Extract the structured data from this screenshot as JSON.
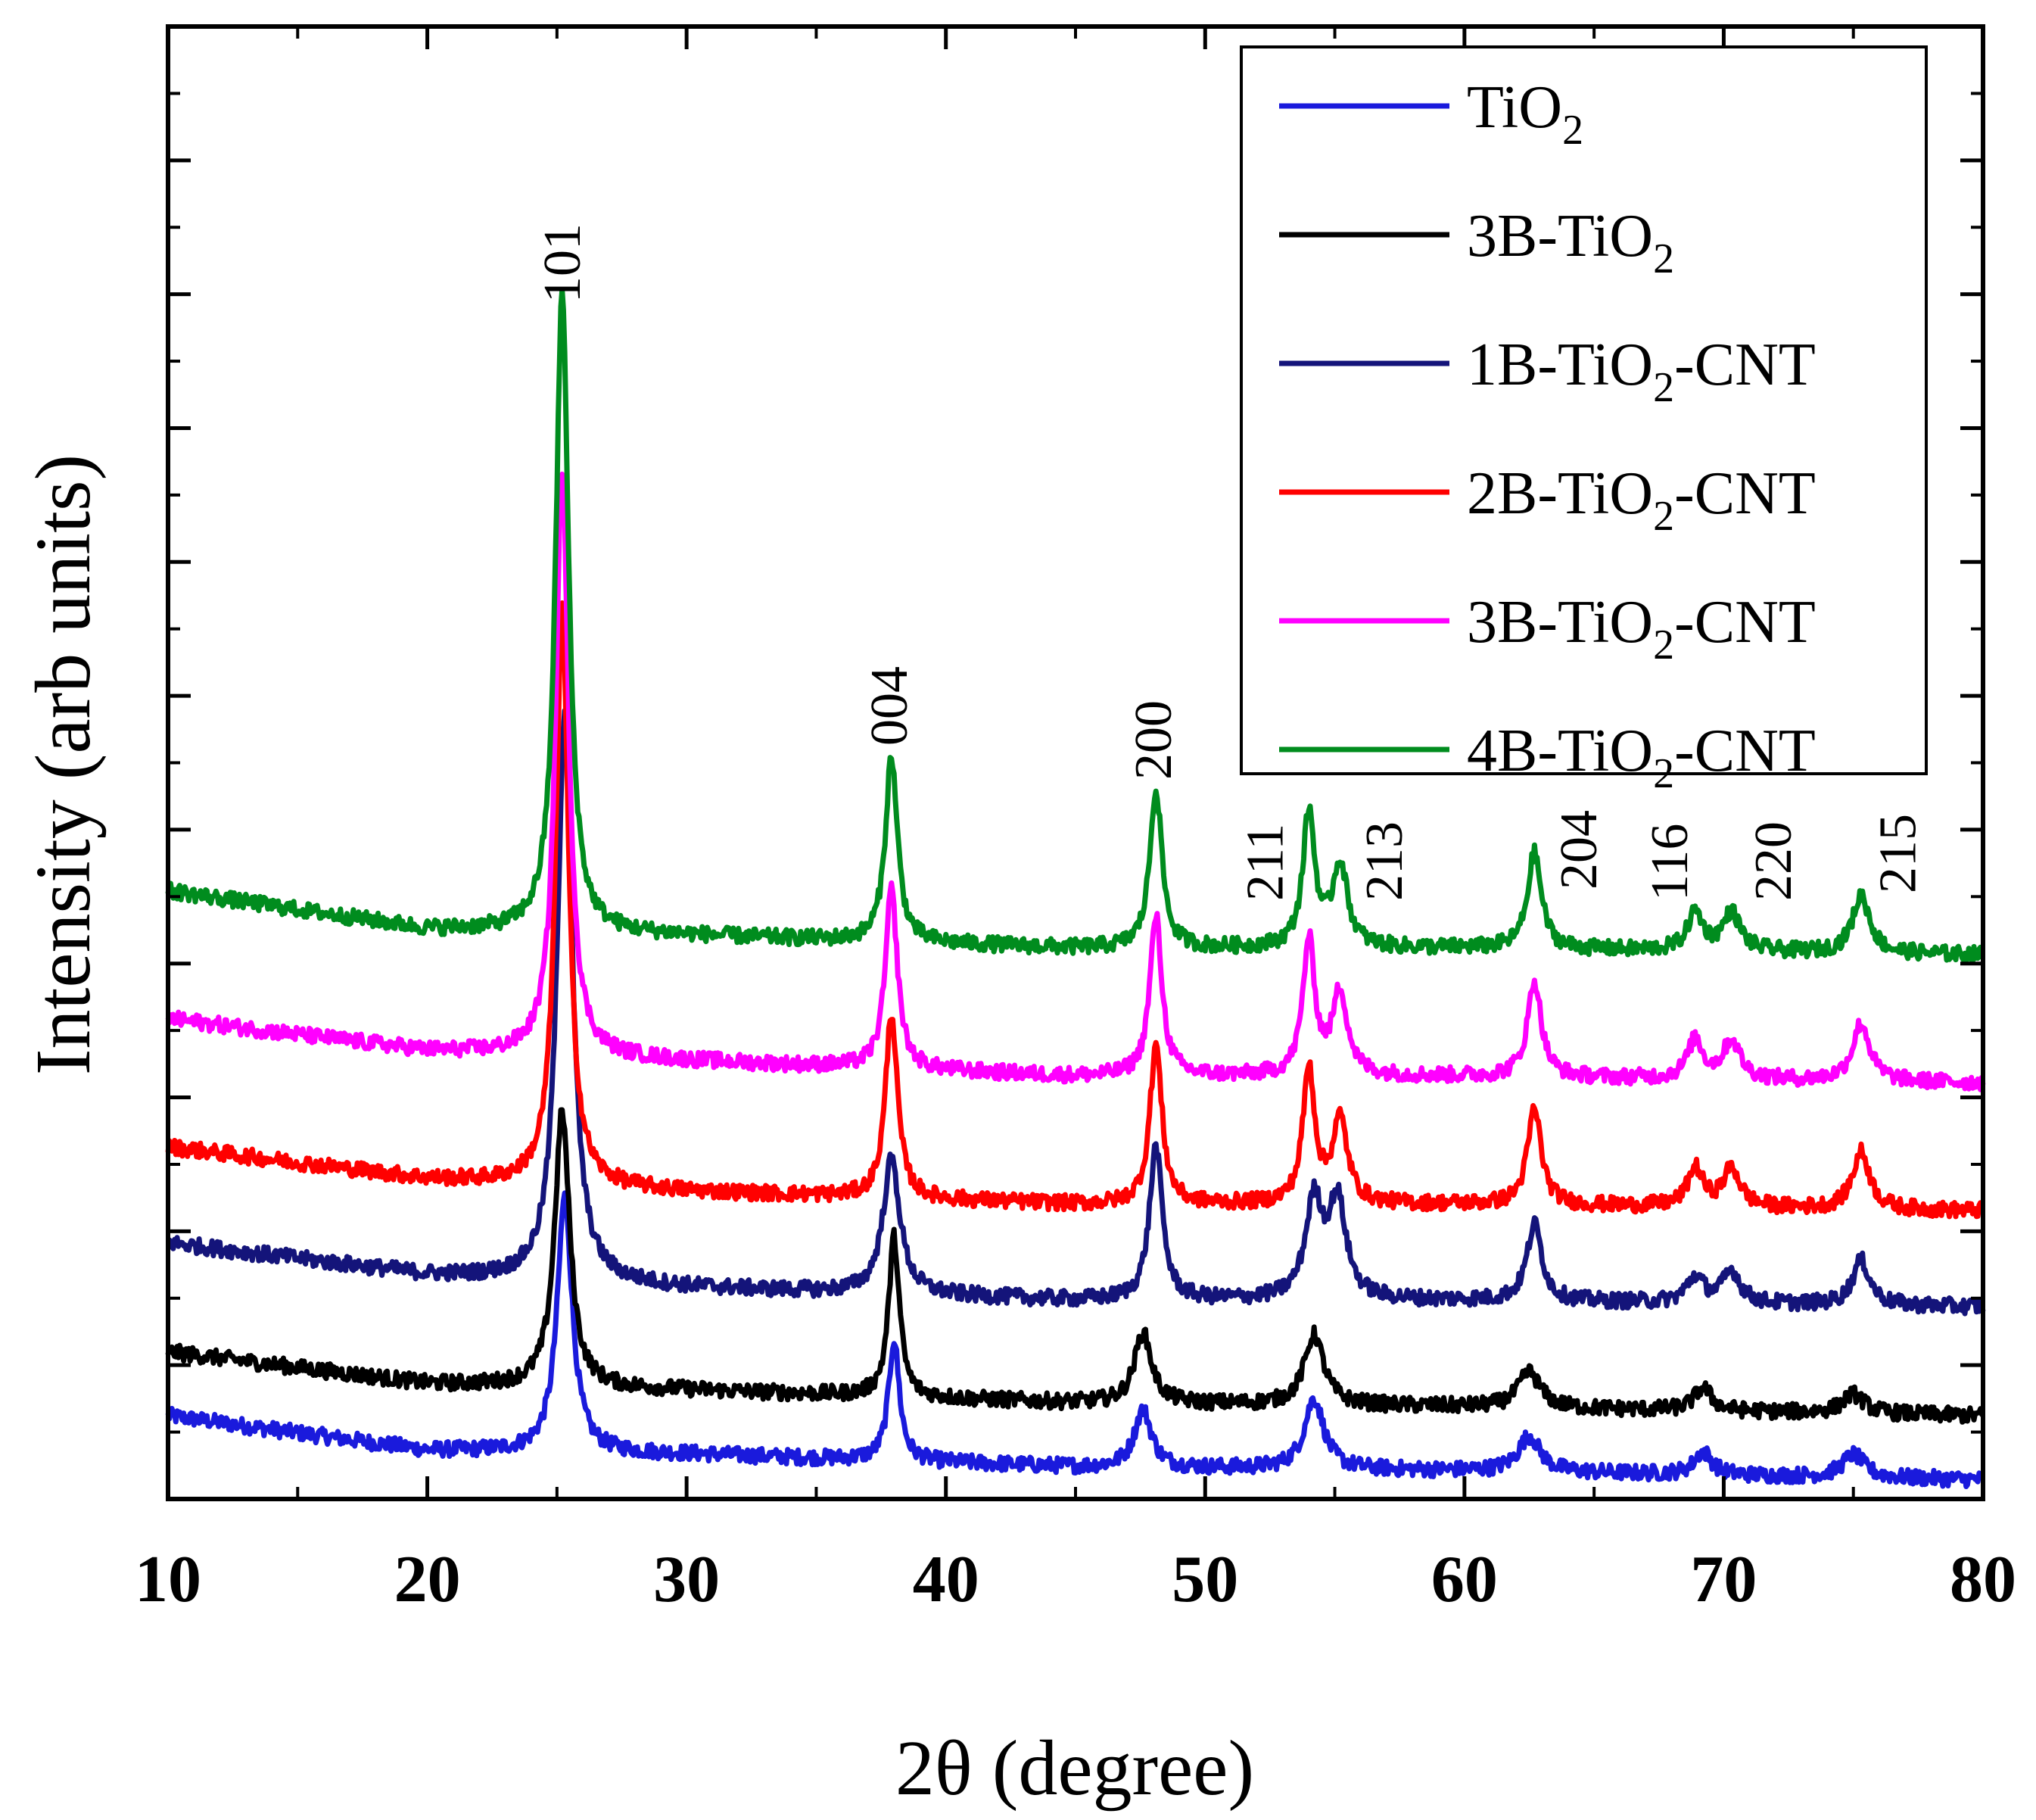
{
  "chart_data": {
    "type": "line",
    "title": "",
    "xlabel": "2θ  (degree)",
    "ylabel": "Intensity (arb units)",
    "xlim": [
      10,
      80
    ],
    "ylim": [
      0,
      11.5
    ],
    "x_ticks": [
      10,
      20,
      30,
      40,
      50,
      60,
      70,
      80
    ],
    "y_tick_count": 11,
    "y_tick_labels_shown": false,
    "legend_position": "top-right",
    "peak_labels": [
      {
        "label": "101",
        "x": 25.3
      },
      {
        "label": "004",
        "x": 37.9
      },
      {
        "label": "200",
        "x": 48.1
      },
      {
        "label": "211",
        "x": 52.4
      },
      {
        "label": "213",
        "x": 57.0
      },
      {
        "label": "204",
        "x": 64.5
      },
      {
        "label": "116",
        "x": 68.0
      },
      {
        "label": "220",
        "x": 72.0
      },
      {
        "label": "215",
        "x": 76.8
      }
    ],
    "series": [
      {
        "name": "TiO2",
        "legend_main": "TiO",
        "legend_sub": "2",
        "legend_suffix": "",
        "color": "#1a1adc",
        "baseline": [
          [
            10,
            0.65
          ],
          [
            20,
            0.38
          ],
          [
            30,
            0.35
          ],
          [
            45,
            0.25
          ],
          [
            60,
            0.22
          ],
          [
            80,
            0.15
          ]
        ],
        "peaks": [
          {
            "x": 25.3,
            "height": 2.0,
            "width": 0.35
          },
          {
            "x": 38.0,
            "height": 0.95,
            "width": 0.25
          },
          {
            "x": 47.6,
            "height": 0.45,
            "width": 0.4
          },
          {
            "x": 54.2,
            "height": 0.55,
            "width": 0.45
          },
          {
            "x": 62.5,
            "height": 0.28,
            "width": 0.5
          },
          {
            "x": 69.2,
            "height": 0.18,
            "width": 0.4
          },
          {
            "x": 75.0,
            "height": 0.18,
            "width": 0.5
          }
        ]
      },
      {
        "name": "3B-TiO2",
        "legend_main": "3B-TiO",
        "legend_sub": "2",
        "legend_suffix": "",
        "color": "#000000",
        "baseline": [
          [
            10,
            1.15
          ],
          [
            20,
            0.9
          ],
          [
            30,
            0.85
          ],
          [
            45,
            0.75
          ],
          [
            60,
            0.72
          ],
          [
            80,
            0.65
          ]
        ],
        "peaks": [
          {
            "x": 25.2,
            "height": 2.15,
            "width": 0.35
          },
          {
            "x": 38.0,
            "height": 1.25,
            "width": 0.25
          },
          {
            "x": 47.6,
            "height": 0.55,
            "width": 0.4
          },
          {
            "x": 54.2,
            "height": 0.55,
            "width": 0.45
          },
          {
            "x": 62.5,
            "height": 0.28,
            "width": 0.5
          },
          {
            "x": 69.2,
            "height": 0.18,
            "width": 0.4
          },
          {
            "x": 75.0,
            "height": 0.15,
            "width": 0.5
          }
        ]
      },
      {
        "name": "1B-TiO2-CNT",
        "legend_main": "1B-TiO",
        "legend_sub": "2",
        "legend_suffix": "-CNT",
        "color": "#14147a",
        "baseline": [
          [
            10,
            2.0
          ],
          [
            20,
            1.75
          ],
          [
            30,
            1.65
          ],
          [
            45,
            1.55
          ],
          [
            60,
            1.55
          ],
          [
            80,
            1.5
          ]
        ],
        "peaks": [
          {
            "x": 25.3,
            "height": 4.45,
            "width": 0.35
          },
          {
            "x": 37.9,
            "height": 1.05,
            "width": 0.4
          },
          {
            "x": 48.1,
            "height": 1.2,
            "width": 0.3
          },
          {
            "x": 54.2,
            "height": 0.75,
            "width": 0.4
          },
          {
            "x": 55.1,
            "height": 0.75,
            "width": 0.4
          },
          {
            "x": 62.7,
            "height": 0.6,
            "width": 0.35
          },
          {
            "x": 68.9,
            "height": 0.2,
            "width": 0.4
          },
          {
            "x": 70.3,
            "height": 0.25,
            "width": 0.4
          },
          {
            "x": 75.3,
            "height": 0.35,
            "width": 0.4
          }
        ]
      },
      {
        "name": "2B-TiO2-CNT",
        "legend_main": "2B-TiO",
        "legend_sub": "2",
        "legend_suffix": "-CNT",
        "color": "#ff0000",
        "baseline": [
          [
            10,
            2.75
          ],
          [
            20,
            2.5
          ],
          [
            30,
            2.4
          ],
          [
            45,
            2.3
          ],
          [
            60,
            2.3
          ],
          [
            80,
            2.25
          ]
        ],
        "peaks": [
          {
            "x": 25.2,
            "height": 4.5,
            "width": 0.3
          },
          {
            "x": 37.9,
            "height": 1.45,
            "width": 0.28
          },
          {
            "x": 48.1,
            "height": 1.25,
            "width": 0.28
          },
          {
            "x": 54.0,
            "height": 1.05,
            "width": 0.28
          },
          {
            "x": 55.2,
            "height": 0.65,
            "width": 0.35
          },
          {
            "x": 62.7,
            "height": 0.75,
            "width": 0.32
          },
          {
            "x": 68.9,
            "height": 0.3,
            "width": 0.35
          },
          {
            "x": 70.3,
            "height": 0.3,
            "width": 0.4
          },
          {
            "x": 75.3,
            "height": 0.45,
            "width": 0.4
          }
        ]
      },
      {
        "name": "3B-TiO2-CNT",
        "legend_main": "3B-TiO",
        "legend_sub": "2",
        "legend_suffix": "-CNT",
        "color": "#ff00ff",
        "baseline": [
          [
            10,
            3.75
          ],
          [
            20,
            3.5
          ],
          [
            30,
            3.42
          ],
          [
            45,
            3.3
          ],
          [
            60,
            3.3
          ],
          [
            80,
            3.25
          ]
        ],
        "peaks": [
          {
            "x": 25.2,
            "height": 4.6,
            "width": 0.3
          },
          {
            "x": 37.9,
            "height": 1.4,
            "width": 0.28
          },
          {
            "x": 48.1,
            "height": 1.25,
            "width": 0.28
          },
          {
            "x": 54.0,
            "height": 1.05,
            "width": 0.28
          },
          {
            "x": 55.2,
            "height": 0.65,
            "width": 0.35
          },
          {
            "x": 62.7,
            "height": 0.75,
            "width": 0.32
          },
          {
            "x": 68.9,
            "height": 0.3,
            "width": 0.35
          },
          {
            "x": 70.3,
            "height": 0.3,
            "width": 0.4
          },
          {
            "x": 75.3,
            "height": 0.45,
            "width": 0.4
          }
        ]
      },
      {
        "name": "4B-TiO2-CNT",
        "legend_main": "4B-TiO",
        "legend_sub": "2",
        "legend_suffix": "-CNT",
        "color": "#008c1e",
        "baseline": [
          [
            10,
            4.75
          ],
          [
            20,
            4.45
          ],
          [
            30,
            4.4
          ],
          [
            45,
            4.3
          ],
          [
            60,
            4.3
          ],
          [
            80,
            4.25
          ]
        ],
        "peaks": [
          {
            "x": 25.2,
            "height": 5.0,
            "width": 0.3
          },
          {
            "x": 37.9,
            "height": 1.45,
            "width": 0.28
          },
          {
            "x": 48.1,
            "height": 1.25,
            "width": 0.28
          },
          {
            "x": 54.0,
            "height": 1.05,
            "width": 0.28
          },
          {
            "x": 55.2,
            "height": 0.65,
            "width": 0.35
          },
          {
            "x": 62.7,
            "height": 0.75,
            "width": 0.32
          },
          {
            "x": 68.9,
            "height": 0.3,
            "width": 0.35
          },
          {
            "x": 70.3,
            "height": 0.3,
            "width": 0.4
          },
          {
            "x": 75.3,
            "height": 0.45,
            "width": 0.4
          }
        ]
      }
    ]
  }
}
